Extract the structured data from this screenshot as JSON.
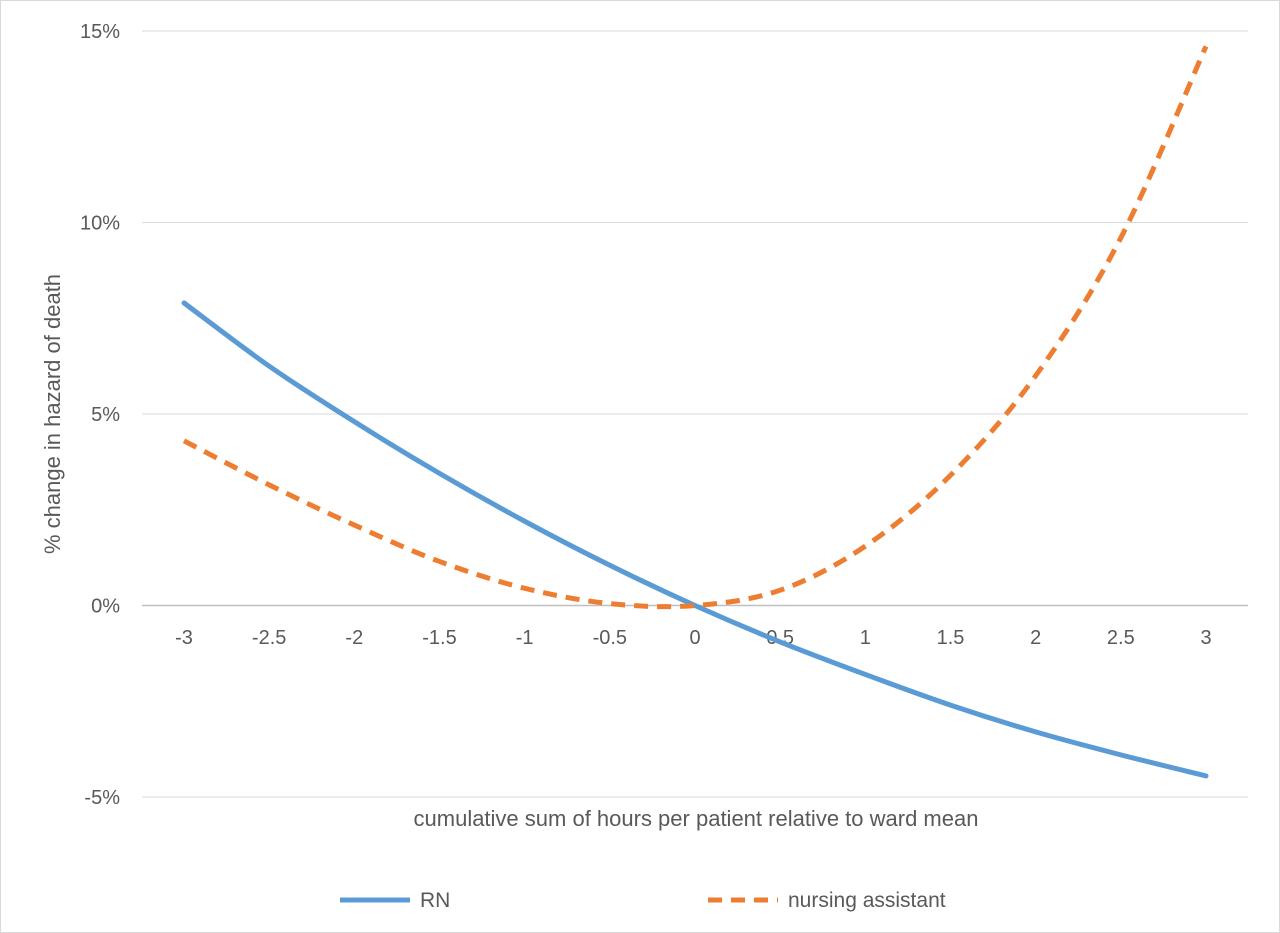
{
  "chart_data": {
    "type": "line",
    "title": "",
    "xlabel": "cumulative sum of hours per patient relative to ward mean",
    "ylabel": "% change in hazard of death",
    "x": [
      -3,
      -2.5,
      -2,
      -1.5,
      -1,
      -0.5,
      0,
      0.5,
      1,
      1.5,
      2,
      2.5,
      3
    ],
    "x_tick_labels": [
      "-3",
      "-2.5",
      "-2",
      "-1.5",
      "-1",
      "-0.5",
      "0",
      "0.5",
      "1",
      "1.5",
      "2",
      "2.5",
      "3"
    ],
    "ylim": [
      -5,
      15
    ],
    "y_ticks": [
      -5,
      0,
      5,
      10,
      15
    ],
    "y_tick_labels": [
      "-5%",
      "0%",
      "5%",
      "10%",
      "15%"
    ],
    "grid": "horizontal",
    "legend": "bottom",
    "series": [
      {
        "name": "RN",
        "color": "#5b9bd5",
        "dash": "solid",
        "values": [
          7.9,
          6.25,
          4.8,
          3.45,
          2.2,
          1.05,
          0.0,
          -0.95,
          -1.8,
          -2.6,
          -3.3,
          -3.9,
          -4.45
        ]
      },
      {
        "name": "nursing assistant",
        "color": "#ed7d31",
        "dash": "dashed",
        "values": [
          4.3,
          3.15,
          2.1,
          1.15,
          0.45,
          0.05,
          0.0,
          0.4,
          1.55,
          3.4,
          6.0,
          9.6,
          14.6
        ]
      }
    ]
  }
}
